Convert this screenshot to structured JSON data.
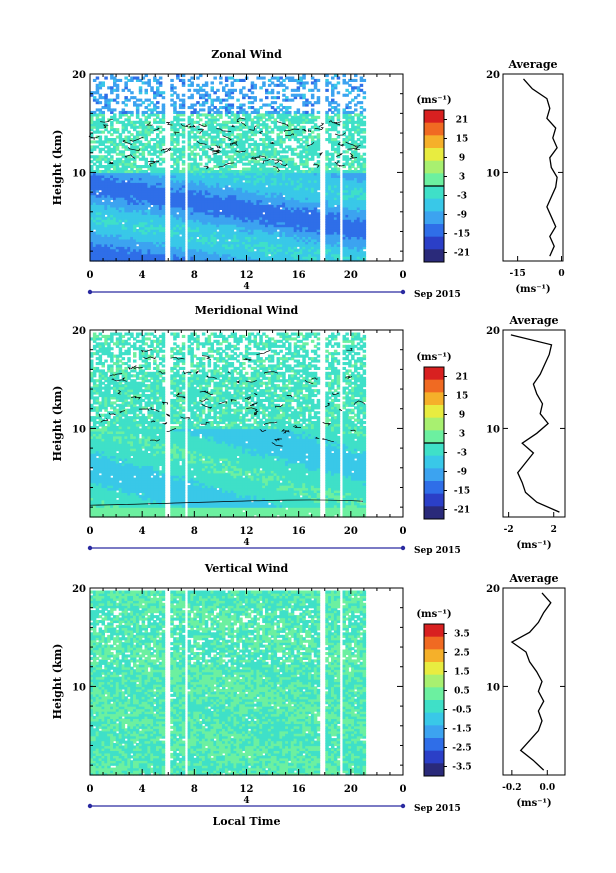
{
  "chart_data": [
    {
      "type": "heatmap",
      "title": "Zonal Wind",
      "ylabel": "Height (km)",
      "y_ticks": [
        "10",
        "20"
      ],
      "ylim": [
        1,
        20
      ],
      "x_ticks": [
        "0",
        "4",
        "8",
        "12",
        "16",
        "20",
        "0"
      ],
      "xlim": [
        0,
        24
      ],
      "date_marker": "4",
      "date_label": "Sep 2015",
      "data_extent_hours": [
        0,
        21
      ],
      "data_gaps_hours": [
        5.7,
        7.1,
        17.7,
        19.1
      ],
      "colorbar": {
        "unit": "(ms⁻¹)",
        "labels": [
          "21",
          "15",
          "9",
          "3",
          "-3",
          "-9",
          "-15",
          "-21"
        ],
        "range": [
          -24,
          24
        ]
      },
      "field_summary": "Mostly negative (easterly) winds of about -5 to -20 ms-1 below ~10 km, weaker near-zero values with contours 10-16 km, sparse negative patches near 17-19 km",
      "average_profile": {
        "title": "Average",
        "x_ticks": [
          "-15",
          "0"
        ],
        "xlim": [
          -20,
          0.5
        ],
        "y_ticks": [
          "10",
          "20"
        ],
        "xlabel": "(ms⁻¹)",
        "height_km": [
          1.5,
          2.5,
          3.5,
          4.5,
          5.5,
          6.5,
          7.5,
          8.5,
          9.5,
          10.5,
          11.5,
          12.5,
          13.5,
          14.5,
          15.5,
          16.5,
          17.5,
          18.5,
          19.5
        ],
        "values": [
          -4,
          -2.5,
          -4,
          -2,
          -3.5,
          -5,
          -3.5,
          -2,
          -1.5,
          -3.5,
          -4,
          -1.5,
          -3,
          -2,
          -5,
          -4,
          -5,
          -10,
          -13
        ]
      }
    },
    {
      "type": "heatmap",
      "title": "Meridional Wind",
      "ylabel": "Height (km)",
      "y_ticks": [
        "10",
        "20"
      ],
      "ylim": [
        1,
        20
      ],
      "x_ticks": [
        "0",
        "4",
        "8",
        "12",
        "16",
        "20",
        "0"
      ],
      "xlim": [
        0,
        24
      ],
      "date_marker": "4",
      "date_label": "Sep 2015",
      "data_extent_hours": [
        0,
        21
      ],
      "data_gaps_hours": [
        5.7,
        7.1,
        17.7,
        19.1
      ],
      "colorbar": {
        "unit": "(ms⁻¹)",
        "labels": [
          "21",
          "15",
          "9",
          "3",
          "-3",
          "-9",
          "-15",
          "-21"
        ],
        "range": [
          -24,
          24
        ]
      },
      "field_summary": "Mostly weak winds of about -6 to +3 ms-1, slightly positive near the surface, contour lines throughout the upper levels",
      "average_profile": {
        "title": "Average",
        "x_ticks": [
          "-2",
          "2"
        ],
        "xlim": [
          -2.5,
          3
        ],
        "y_ticks": [
          "10",
          "20"
        ],
        "xlabel": "(ms⁻¹)",
        "height_km": [
          1.5,
          2.5,
          3.5,
          4.5,
          5.5,
          6.5,
          7.5,
          8.5,
          9.5,
          10.5,
          11.5,
          12.5,
          13.5,
          14.5,
          15.5,
          16.5,
          17.5,
          18.5,
          19.5
        ],
        "values": [
          2.5,
          0.5,
          -0.5,
          -0.8,
          -1.2,
          -0.5,
          0.2,
          -0.8,
          0.5,
          1.5,
          0.8,
          1.0,
          0.5,
          0.2,
          0.8,
          1.2,
          1.6,
          1.8,
          -1.8
        ]
      }
    },
    {
      "type": "heatmap",
      "title": "Vertical Wind",
      "ylabel": "Height (km)",
      "xlabel": "Local Time",
      "y_ticks": [
        "10",
        "20"
      ],
      "ylim": [
        1,
        20
      ],
      "x_ticks": [
        "0",
        "4",
        "8",
        "12",
        "16",
        "20",
        "0"
      ],
      "xlim": [
        0,
        24
      ],
      "date_marker": "4",
      "date_label": "Sep 2015",
      "data_extent_hours": [
        0,
        21
      ],
      "data_gaps_hours": [
        5.7,
        7.1,
        17.7,
        19.1
      ],
      "colorbar": {
        "unit": "(ms⁻¹)",
        "labels": [
          "3.5",
          "2.5",
          "1.5",
          "0.5",
          "-0.5",
          "-1.5",
          "-2.5",
          "-3.5"
        ],
        "range": [
          -4,
          4
        ]
      },
      "field_summary": "Small vertical winds near zero, roughly -0.5 to +0.5 ms-1 throughout",
      "average_profile": {
        "title": "Average",
        "x_ticks": [
          "-0.2",
          "0.0"
        ],
        "xlim": [
          -0.25,
          0.1
        ],
        "y_ticks": [
          "10",
          "20"
        ],
        "xlabel": "(ms⁻¹)",
        "height_km": [
          1.5,
          2.5,
          3.5,
          4.5,
          5.5,
          6.5,
          7.5,
          8.5,
          9.5,
          10.5,
          11.5,
          12.5,
          13.5,
          14.5,
          15.5,
          16.5,
          17.5,
          18.5,
          19.5
        ],
        "values": [
          -0.02,
          -0.08,
          -0.15,
          -0.1,
          -0.05,
          -0.03,
          -0.05,
          -0.02,
          -0.05,
          -0.03,
          -0.06,
          -0.1,
          -0.12,
          -0.2,
          -0.1,
          -0.05,
          -0.02,
          0.02,
          -0.03
        ]
      }
    }
  ],
  "colors": {
    "scale": [
      "#2a2a7a",
      "#2b3fc7",
      "#2f6ee8",
      "#3ca3f0",
      "#39c8e8",
      "#3fe0c8",
      "#6cf0a0",
      "#a8f070",
      "#e8ec40",
      "#f5b02a",
      "#f06a22",
      "#d82020"
    ]
  }
}
